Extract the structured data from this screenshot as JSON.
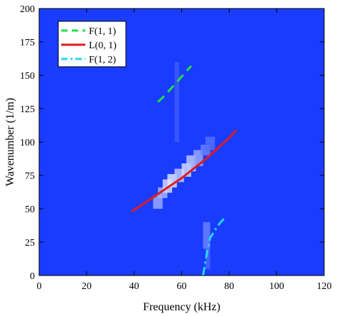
{
  "chart_data": {
    "type": "heatmap",
    "title": "",
    "xlabel": "Frequency (kHz)",
    "ylabel": "Wavenumber (1/m)",
    "xlim": [
      0,
      120
    ],
    "ylim": [
      0,
      200
    ],
    "xticks": [
      0,
      20,
      40,
      60,
      80,
      100,
      120
    ],
    "yticks": [
      0,
      25,
      50,
      75,
      100,
      125,
      150,
      175,
      200
    ],
    "grid": false,
    "legend_position": "top-left",
    "background_color": "#1a3cff",
    "heatmap_regions": [
      {
        "x": [
          48,
          52
        ],
        "y": [
          50,
          60
        ],
        "intensity": 0.55
      },
      {
        "x": [
          50,
          54
        ],
        "y": [
          58,
          66
        ],
        "intensity": 0.6
      },
      {
        "x": [
          52,
          56
        ],
        "y": [
          62,
          72
        ],
        "intensity": 0.8
      },
      {
        "x": [
          54,
          58
        ],
        "y": [
          66,
          76
        ],
        "intensity": 0.85
      },
      {
        "x": [
          57,
          61
        ],
        "y": [
          70,
          80
        ],
        "intensity": 0.7
      },
      {
        "x": [
          60,
          64
        ],
        "y": [
          74,
          84
        ],
        "intensity": 0.8
      },
      {
        "x": [
          62,
          66
        ],
        "y": [
          78,
          90
        ],
        "intensity": 0.7
      },
      {
        "x": [
          65,
          69
        ],
        "y": [
          82,
          94
        ],
        "intensity": 0.55
      },
      {
        "x": [
          68,
          72
        ],
        "y": [
          90,
          98
        ],
        "intensity": 0.35
      },
      {
        "x": [
          70,
          74
        ],
        "y": [
          94,
          104
        ],
        "intensity": 0.25
      },
      {
        "x": [
          69,
          72
        ],
        "y": [
          20,
          40
        ],
        "intensity": 0.35
      },
      {
        "x": [
          70,
          72
        ],
        "y": [
          5,
          20
        ],
        "intensity": 0.2
      },
      {
        "x": [
          57,
          59
        ],
        "y": [
          100,
          160
        ],
        "intensity": 0.15
      }
    ],
    "series": [
      {
        "name": "F(1, 1)",
        "color": "#22e04a",
        "dash": "dashed",
        "x": [
          50,
          53,
          56,
          59,
          62,
          64
        ],
        "y": [
          130,
          135,
          141,
          147,
          153,
          157
        ]
      },
      {
        "name": "L(0, 1)",
        "color": "#e31a1c",
        "dash": "solid",
        "x": [
          39,
          45,
          50,
          55,
          60,
          65,
          70,
          75,
          80,
          83
        ],
        "y": [
          48,
          55,
          61,
          67,
          73,
          80,
          87,
          95,
          103,
          109
        ]
      },
      {
        "name": "F(1, 2)",
        "color": "#22d9f0",
        "dash": "dashdot",
        "x": [
          69,
          70,
          71,
          72,
          74,
          76,
          78
        ],
        "y": [
          0,
          10,
          20,
          28,
          34,
          39,
          43
        ]
      }
    ]
  }
}
